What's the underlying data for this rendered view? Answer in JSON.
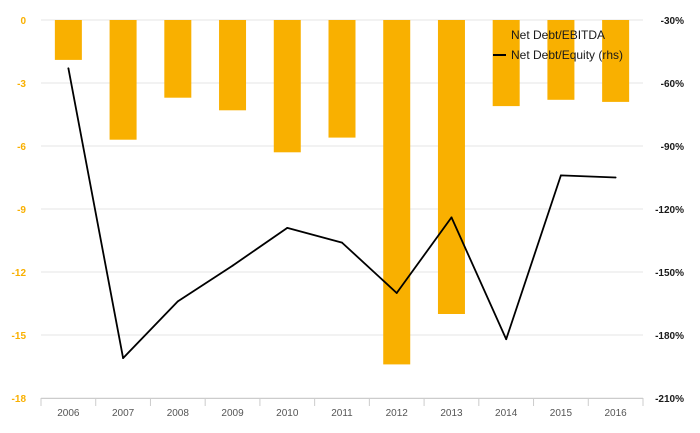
{
  "chart_data": {
    "type": "bar",
    "categories": [
      "2006",
      "2007",
      "2008",
      "2009",
      "2010",
      "2011",
      "2012",
      "2013",
      "2014",
      "2015",
      "2016"
    ],
    "series": [
      {
        "name": "Net Debt/EBITDA",
        "type": "bar",
        "axis": "left",
        "color": "#F9B000",
        "values": [
          -1.9,
          -5.7,
          -3.7,
          -4.3,
          -6.3,
          -5.6,
          -16.4,
          -14.0,
          -4.1,
          -3.8,
          -3.9
        ]
      },
      {
        "name": "Net Debt/Equity (rhs)",
        "type": "line",
        "axis": "right",
        "color": "#000000",
        "values": [
          -53,
          -191,
          -164,
          -147,
          -129,
          -136,
          -160,
          -124,
          -182,
          -104,
          -105
        ]
      }
    ],
    "left_axis": {
      "ylim": [
        -18,
        0
      ],
      "ticks": [
        0,
        -3,
        -6,
        -9,
        -12,
        -15,
        -18
      ],
      "tick_labels": [
        "0",
        "-3",
        "-6",
        "-9",
        "-12",
        "-15",
        "-18"
      ],
      "color": "#F9B000"
    },
    "right_axis": {
      "ylim": [
        -210,
        -30
      ],
      "ticks": [
        -30,
        -60,
        -90,
        -120,
        -150,
        -180,
        -210
      ],
      "tick_labels": [
        "-30%",
        "-60%",
        "-90%",
        "-120%",
        "-150%",
        "-180%",
        "-210%"
      ]
    },
    "legend_position": "top-right",
    "grid": true
  }
}
